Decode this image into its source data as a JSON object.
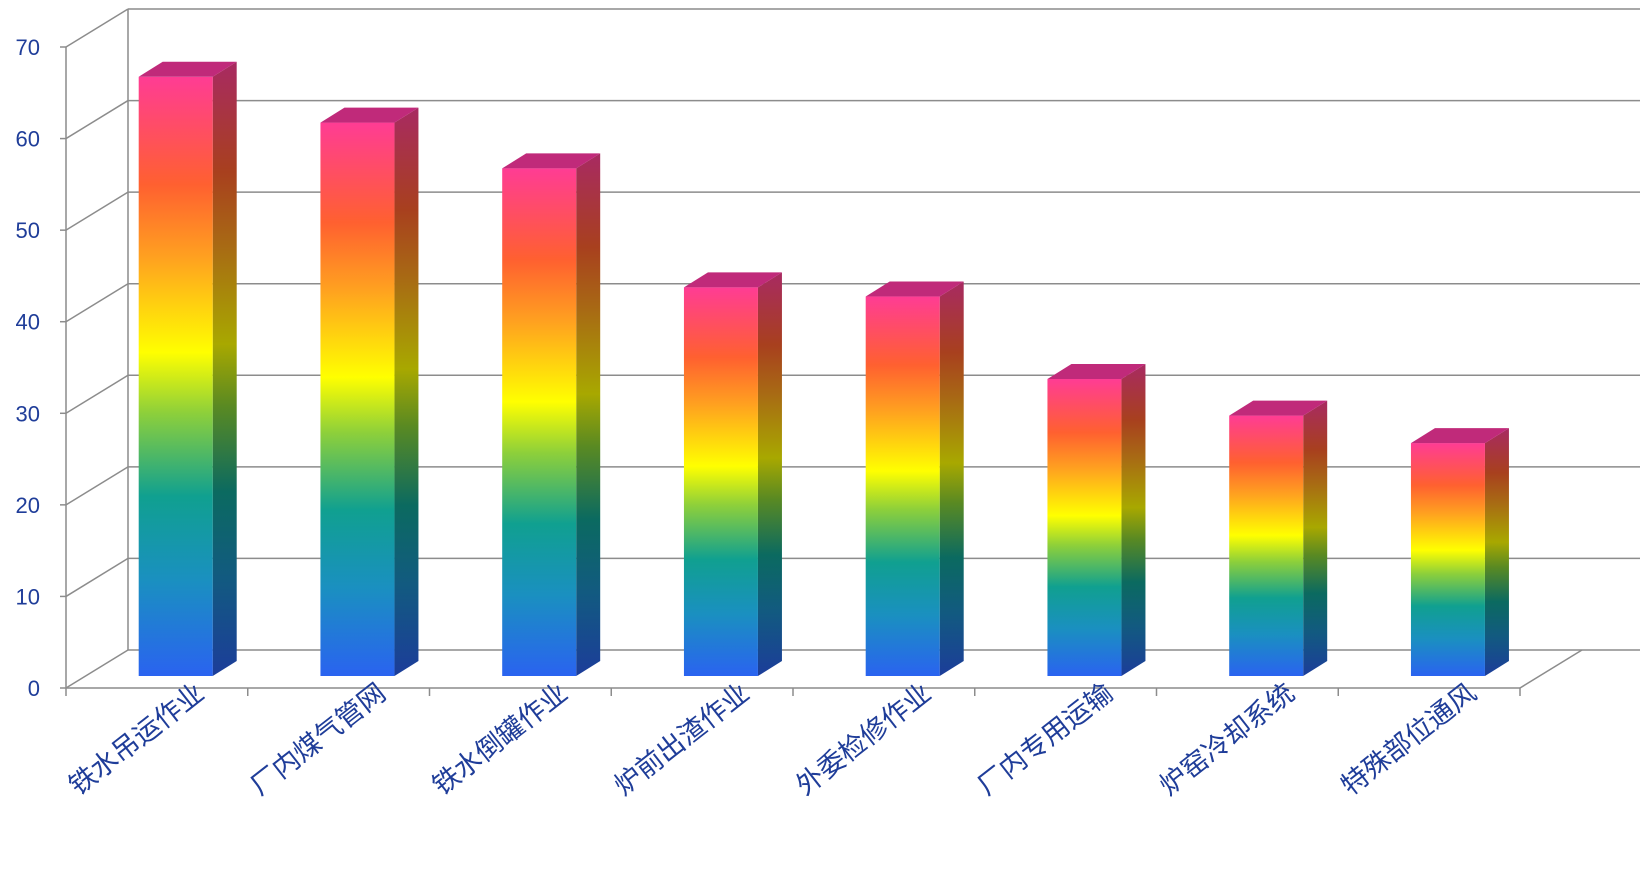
{
  "chart_data": {
    "type": "bar",
    "categories": [
      "铁水吊运作业",
      "厂内煤气管网",
      "铁水倒罐作业",
      "炉前出渣作业",
      "外委检修作业",
      "厂内专用运输",
      "炉窑冷却系统",
      "特殊部位通风"
    ],
    "values": [
      65,
      60,
      55,
      42,
      41,
      32,
      28,
      25
    ],
    "title": "",
    "xlabel": "",
    "ylabel": "",
    "ylim": [
      0,
      70
    ],
    "yticks": [
      0,
      10,
      20,
      30,
      40,
      50,
      60,
      70
    ],
    "grid": true,
    "legend": "none",
    "colors": {
      "gradient_bottom": "#2a63f0",
      "gradient_teal": "#10a090",
      "gradient_green": "#8ed03a",
      "gradient_yellow": "#ffff00",
      "gradient_orange": "#ff8a1c",
      "gradient_top": "#ff3c94",
      "top_face": "#c02a7a",
      "axis_text": "#1f3d99",
      "grid_line": "#8c8c8c"
    }
  }
}
